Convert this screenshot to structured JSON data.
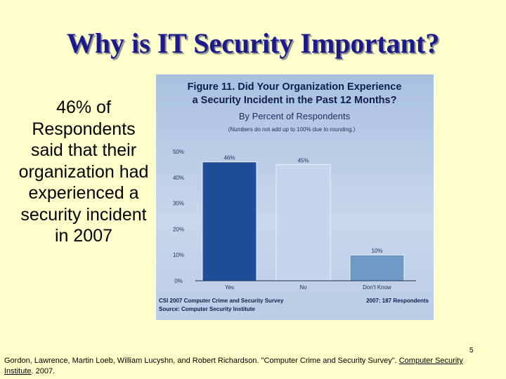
{
  "slide": {
    "title": "Why is IT Security Important?",
    "body_text": "46% of Respondents said that their organization had experienced a security incident in 2007",
    "page_number": "5",
    "citation_text": "Gordon, Lawrence, Martin Loeb, William Lucyshn, and Robert Richardson. \"Computer Crime and Security Survey\". ",
    "citation_link": "Computer Security Institute",
    "citation_tail": ". 2007."
  },
  "chart_data": {
    "type": "bar",
    "title": "Figure 11. Did Your Organization Experience a Security Incident in the Past 12 Months?",
    "title_line1": "Figure 11. Did Your Organization Experience",
    "title_line2": "a Security Incident in the Past 12 Months?",
    "subtitle": "By Percent of Respondents",
    "note": "(Numbers do not add up to 100% due to rounding.)",
    "categories": [
      "Yes",
      "No",
      "Don't Know"
    ],
    "values": [
      46,
      45,
      10
    ],
    "value_labels": [
      "46%",
      "45%",
      "10%"
    ],
    "bar_colors": [
      "#1e4e9a",
      "#c4d6ec",
      "#6f9ac6"
    ],
    "ylim": [
      0,
      50
    ],
    "yticks": [
      "0%",
      "10%",
      "20%",
      "30%",
      "40%",
      "50%"
    ],
    "source_line1": "CSI 2007 Computer Crime and Security Survey",
    "source_line2": "Source: Computer Security Institute",
    "respondents": "2007: 187 Respondents"
  }
}
